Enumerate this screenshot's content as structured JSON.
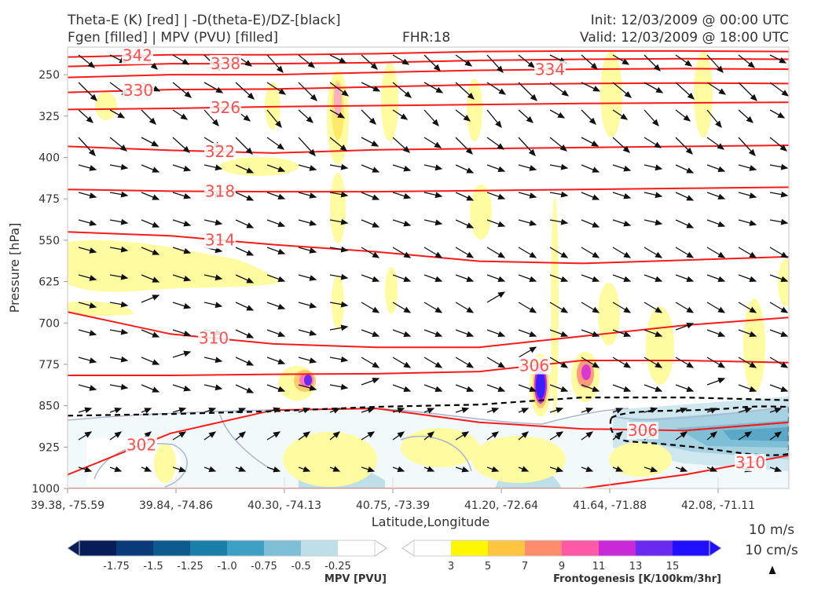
{
  "header": {
    "title_left_1": "Theta-E (K) [red] | -D(theta-E)/DZ-[black]",
    "title_left_2": "Fgen [filled] | MPV (PVU) [filled]",
    "fhr": "FHR:18",
    "init": "Init: 12/03/2009 @ 00:00 UTC",
    "valid": "Valid: 12/03/2009 @ 18:00 UTC"
  },
  "vector_key": {
    "line1": "10 m/s",
    "line2": "10 cm/s"
  },
  "colorbars": {
    "mpv": {
      "title": "MPV [PVU]",
      "colors": [
        "#081d58",
        "#0a3b78",
        "#0d5a8f",
        "#1a7fa8",
        "#3e9fc4",
        "#7ebfd6",
        "#bfdfe8",
        "#ffffff"
      ],
      "ticks": [
        "-1.75",
        "-1.5",
        "-1.25",
        "-1.0",
        "-0.75",
        "-0.5",
        "-0.25"
      ]
    },
    "fgen": {
      "title": "Frontogenesis [K/100km/3hr]",
      "colors": [
        "#ffffff",
        "#fff700",
        "#ffc440",
        "#ff8c6a",
        "#ff5aa8",
        "#c82ad8",
        "#6a2af0",
        "#2010ff"
      ],
      "ticks": [
        "3",
        "5",
        "7",
        "9",
        "11",
        "13",
        "15"
      ]
    }
  },
  "chart_data": {
    "type": "cross-section",
    "xlabel": "Latitude,Longitude",
    "ylabel": "Pressure [hPa]",
    "x_ticks": [
      "39.38, -75.59",
      "39.84, -74.86",
      "40.30, -74.13",
      "40.75, -73.39",
      "41.20, -72.64",
      "41.64, -71.88",
      "42.08, -71.11"
    ],
    "y_ticks": [
      "250",
      "325",
      "400",
      "475",
      "550",
      "625",
      "700",
      "775",
      "850",
      "925",
      "1000"
    ],
    "ylim": [
      1000,
      200
    ],
    "theta_e_contours": [
      {
        "label": "342",
        "p": [
          218,
          214,
          214,
          212,
          208,
          207,
          207,
          208
        ]
      },
      {
        "label": "338",
        "p": [
          235,
          230,
          230,
          228,
          224,
          222,
          221,
          222
        ]
      },
      {
        "label": "334",
        "p": [
          255,
          250,
          250,
          246,
          242,
          240,
          239,
          240
        ]
      },
      {
        "label": "330",
        "p": [
          282,
          277,
          276,
          272,
          268,
          266,
          265,
          266
        ]
      },
      {
        "label": "326",
        "p": [
          313,
          311,
          308,
          306,
          304,
          302,
          301,
          300
        ]
      },
      {
        "label": "322",
        "p": [
          380,
          387,
          392,
          386,
          384,
          382,
          380,
          378
        ]
      },
      {
        "label": "318",
        "p": [
          458,
          461,
          462,
          462,
          460,
          458,
          456,
          454
        ]
      },
      {
        "label": "314",
        "p": [
          535,
          542,
          558,
          571,
          588,
          592,
          586,
          580
        ]
      },
      {
        "label": "310",
        "p": [
          680,
          720,
          738,
          744,
          744,
          724,
          704,
          690
        ]
      },
      {
        "label": "306",
        "p": [
          795,
          795,
          793,
          792,
          788,
          768,
          768,
          772
        ]
      },
      {
        "label": "302",
        "p": [
          975,
          900,
          858,
          855,
          880,
          892,
          895,
          880
        ]
      },
      {
        "label": "310",
        "p": [
          1000,
          1000,
          1000,
          1000,
          1000,
          1000,
          975,
          940
        ]
      },
      {
        "label": "306",
        "p": [
          null,
          null,
          null,
          null,
          null,
          null,
          895,
          880
        ]
      }
    ],
    "dtheta_e_dz_zero_line": [
      868,
      865,
      860,
      852,
      848,
      835,
      835,
      840
    ],
    "fgen_maxima": [
      {
        "near": "40.34, -74.06",
        "p": 798,
        "value": 15
      },
      {
        "near": "41.27, -72.52",
        "p": 805,
        "value": 15
      },
      {
        "near": "41.55, -72.03",
        "p": 790,
        "value": 13
      },
      {
        "near": "40.60, -73.64",
        "p": 290,
        "value": 9
      }
    ]
  }
}
